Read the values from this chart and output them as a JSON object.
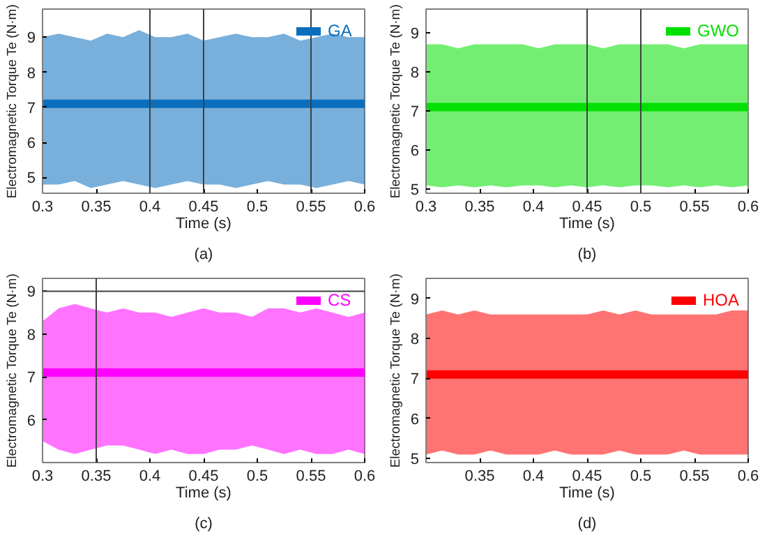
{
  "chart_data": [
    {
      "type": "line",
      "xlabel": "Time (s)",
      "ylabel": "Electromagnetic Torque Te (N·m)",
      "annotations": [
        "(a)"
      ],
      "xlim": [
        0.3,
        0.6
      ],
      "xticks": [
        0.3,
        0.35,
        0.4,
        0.45,
        0.5,
        0.55,
        0.6
      ],
      "ylim": [
        4.55,
        9.8
      ],
      "yticks": [
        5,
        6,
        7,
        8,
        9
      ],
      "grid": false,
      "legend": "top right",
      "x": [
        0.3,
        0.315,
        0.33,
        0.345,
        0.36,
        0.375,
        0.39,
        0.405,
        0.42,
        0.435,
        0.45,
        0.465,
        0.48,
        0.495,
        0.51,
        0.525,
        0.54,
        0.555,
        0.57,
        0.585,
        0.6
      ],
      "ref_lines": [
        {
          "axis": "x",
          "value": 0.4,
          "color": "#404040"
        },
        {
          "axis": "x",
          "value": 0.45,
          "color": "#404040"
        },
        {
          "axis": "x",
          "value": 0.55,
          "color": "#404040"
        }
      ],
      "series": [
        {
          "name": "GA",
          "color": "#0a6ebd",
          "values": [
            7.1,
            7.1,
            7.1,
            7.1,
            7.1,
            7.1,
            7.1,
            7.1,
            7.1,
            7.1,
            7.1,
            7.1,
            7.1,
            7.1,
            7.1,
            7.1,
            7.1,
            7.1,
            7.1,
            7.1,
            7.1
          ],
          "upper": [
            9.0,
            9.1,
            9.0,
            8.9,
            9.1,
            9.0,
            9.2,
            9.0,
            9.0,
            9.1,
            8.9,
            9.0,
            9.1,
            9.0,
            9.0,
            9.1,
            8.9,
            9.0,
            9.1,
            9.0,
            9.0
          ],
          "lower": [
            4.8,
            4.8,
            4.9,
            4.7,
            4.8,
            4.9,
            4.8,
            4.7,
            4.8,
            4.9,
            4.8,
            4.8,
            4.7,
            4.8,
            4.9,
            4.8,
            4.8,
            4.7,
            4.8,
            4.9,
            4.8
          ]
        }
      ]
    },
    {
      "type": "line",
      "xlabel": "Time (s)",
      "ylabel": "Electromagnetic Torque Te (N·m)",
      "annotations": [
        "(b)"
      ],
      "xlim": [
        0.3,
        0.6
      ],
      "xticks": [
        0.3,
        0.35,
        0.4,
        0.45,
        0.5,
        0.55,
        0.6
      ],
      "ylim": [
        4.9,
        9.6
      ],
      "yticks": [
        5,
        6,
        7,
        8,
        9
      ],
      "grid": false,
      "legend": "top right",
      "x": [
        0.3,
        0.315,
        0.33,
        0.345,
        0.36,
        0.375,
        0.39,
        0.405,
        0.42,
        0.435,
        0.45,
        0.465,
        0.48,
        0.495,
        0.51,
        0.525,
        0.54,
        0.555,
        0.57,
        0.585,
        0.6
      ],
      "ref_lines": [
        {
          "axis": "x",
          "value": 0.45,
          "color": "#404040"
        },
        {
          "axis": "x",
          "value": 0.5,
          "color": "#404040"
        }
      ],
      "series": [
        {
          "name": "GWO",
          "color": "#00e000",
          "values": [
            7.1,
            7.1,
            7.1,
            7.1,
            7.1,
            7.1,
            7.1,
            7.1,
            7.1,
            7.1,
            7.1,
            7.1,
            7.1,
            7.1,
            7.1,
            7.1,
            7.1,
            7.1,
            7.1,
            7.1,
            7.1
          ],
          "upper": [
            8.7,
            8.7,
            8.6,
            8.7,
            8.7,
            8.7,
            8.7,
            8.6,
            8.7,
            8.7,
            8.7,
            8.6,
            8.7,
            8.7,
            8.7,
            8.7,
            8.6,
            8.7,
            8.7,
            8.7,
            8.7
          ],
          "lower": [
            5.1,
            5.05,
            5.1,
            5.05,
            5.1,
            5.05,
            5.1,
            5.1,
            5.05,
            5.1,
            5.05,
            5.1,
            5.05,
            5.1,
            5.1,
            5.05,
            5.1,
            5.05,
            5.1,
            5.05,
            5.1
          ]
        }
      ]
    },
    {
      "type": "line",
      "xlabel": "Time (s)",
      "ylabel": "Electromagnetic Torque Te (N·m)",
      "annotations": [
        "(c)"
      ],
      "xlim": [
        0.3,
        0.6
      ],
      "xticks": [
        0.3,
        0.35,
        0.4,
        0.45,
        0.5,
        0.55,
        0.6
      ],
      "ylim": [
        5.0,
        9.3
      ],
      "yticks": [
        6,
        7,
        8,
        9
      ],
      "grid": false,
      "legend": "top right",
      "x": [
        0.3,
        0.315,
        0.33,
        0.345,
        0.36,
        0.375,
        0.39,
        0.405,
        0.42,
        0.435,
        0.45,
        0.465,
        0.48,
        0.495,
        0.51,
        0.525,
        0.54,
        0.555,
        0.57,
        0.585,
        0.6
      ],
      "ref_lines": [
        {
          "axis": "x",
          "value": 0.35,
          "color": "#404040"
        },
        {
          "axis": "y",
          "value": 9,
          "color": "#404040"
        }
      ],
      "series": [
        {
          "name": "CS",
          "color": "#ff00ff",
          "values": [
            7.1,
            7.1,
            7.1,
            7.1,
            7.1,
            7.1,
            7.1,
            7.1,
            7.1,
            7.1,
            7.1,
            7.1,
            7.1,
            7.1,
            7.1,
            7.1,
            7.1,
            7.1,
            7.1,
            7.1,
            7.1
          ],
          "upper": [
            8.3,
            8.6,
            8.7,
            8.6,
            8.5,
            8.6,
            8.5,
            8.5,
            8.4,
            8.5,
            8.6,
            8.5,
            8.5,
            8.4,
            8.6,
            8.6,
            8.5,
            8.6,
            8.5,
            8.4,
            8.5
          ],
          "lower": [
            5.5,
            5.3,
            5.2,
            5.3,
            5.4,
            5.4,
            5.3,
            5.2,
            5.3,
            5.2,
            5.2,
            5.3,
            5.3,
            5.4,
            5.3,
            5.2,
            5.3,
            5.2,
            5.2,
            5.3,
            5.2
          ]
        }
      ]
    },
    {
      "type": "line",
      "xlabel": "Time (s)",
      "ylabel": "Electromagnetic Torque Te (N·m)",
      "annotations": [
        "(d)"
      ],
      "xlim": [
        0.3,
        0.6
      ],
      "xticks": [
        0.35,
        0.4,
        0.45,
        0.5,
        0.55,
        0.6
      ],
      "ylim": [
        4.9,
        9.5
      ],
      "yticks": [
        5,
        6,
        7,
        8,
        9
      ],
      "grid": false,
      "legend": "top right",
      "x": [
        0.3,
        0.315,
        0.33,
        0.345,
        0.36,
        0.375,
        0.39,
        0.405,
        0.42,
        0.435,
        0.45,
        0.465,
        0.48,
        0.495,
        0.51,
        0.525,
        0.54,
        0.555,
        0.57,
        0.585,
        0.6
      ],
      "series": [
        {
          "name": "HOA",
          "color": "#ff0000",
          "values": [
            7.1,
            7.1,
            7.1,
            7.1,
            7.1,
            7.1,
            7.1,
            7.1,
            7.1,
            7.1,
            7.1,
            7.1,
            7.1,
            7.1,
            7.1,
            7.1,
            7.1,
            7.1,
            7.1,
            7.1,
            7.1
          ],
          "upper": [
            8.6,
            8.7,
            8.6,
            8.7,
            8.6,
            8.6,
            8.6,
            8.6,
            8.6,
            8.6,
            8.6,
            8.7,
            8.6,
            8.7,
            8.6,
            8.6,
            8.6,
            8.6,
            8.6,
            8.7,
            8.7
          ],
          "lower": [
            5.1,
            5.2,
            5.1,
            5.1,
            5.2,
            5.1,
            5.1,
            5.1,
            5.2,
            5.1,
            5.1,
            5.1,
            5.2,
            5.1,
            5.1,
            5.1,
            5.2,
            5.1,
            5.1,
            5.1,
            5.1
          ]
        }
      ]
    }
  ]
}
